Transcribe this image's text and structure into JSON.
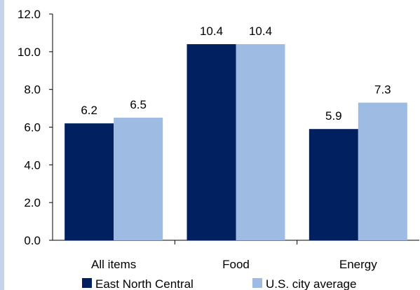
{
  "chart_data": {
    "type": "bar",
    "categories": [
      "All items",
      "Food",
      "Energy"
    ],
    "series": [
      {
        "name": "East North Central",
        "values": [
          6.2,
          10.4,
          5.9
        ],
        "labels": [
          "6.2",
          "10.4",
          "5.9"
        ],
        "color": "#002060"
      },
      {
        "name": "U.S. city average",
        "values": [
          6.5,
          10.4,
          7.3
        ],
        "labels": [
          "6.5",
          "10.4",
          "7.3"
        ],
        "color": "#9dbbe3"
      }
    ],
    "ylim": [
      0,
      12
    ],
    "yticks": [
      "0.0",
      "2.0",
      "4.0",
      "6.0",
      "8.0",
      "10.0",
      "12.0"
    ],
    "grid": false,
    "legend": "bottom"
  },
  "colors": {
    "axis": "#000000",
    "accent_strip": "#c5d4ea"
  }
}
